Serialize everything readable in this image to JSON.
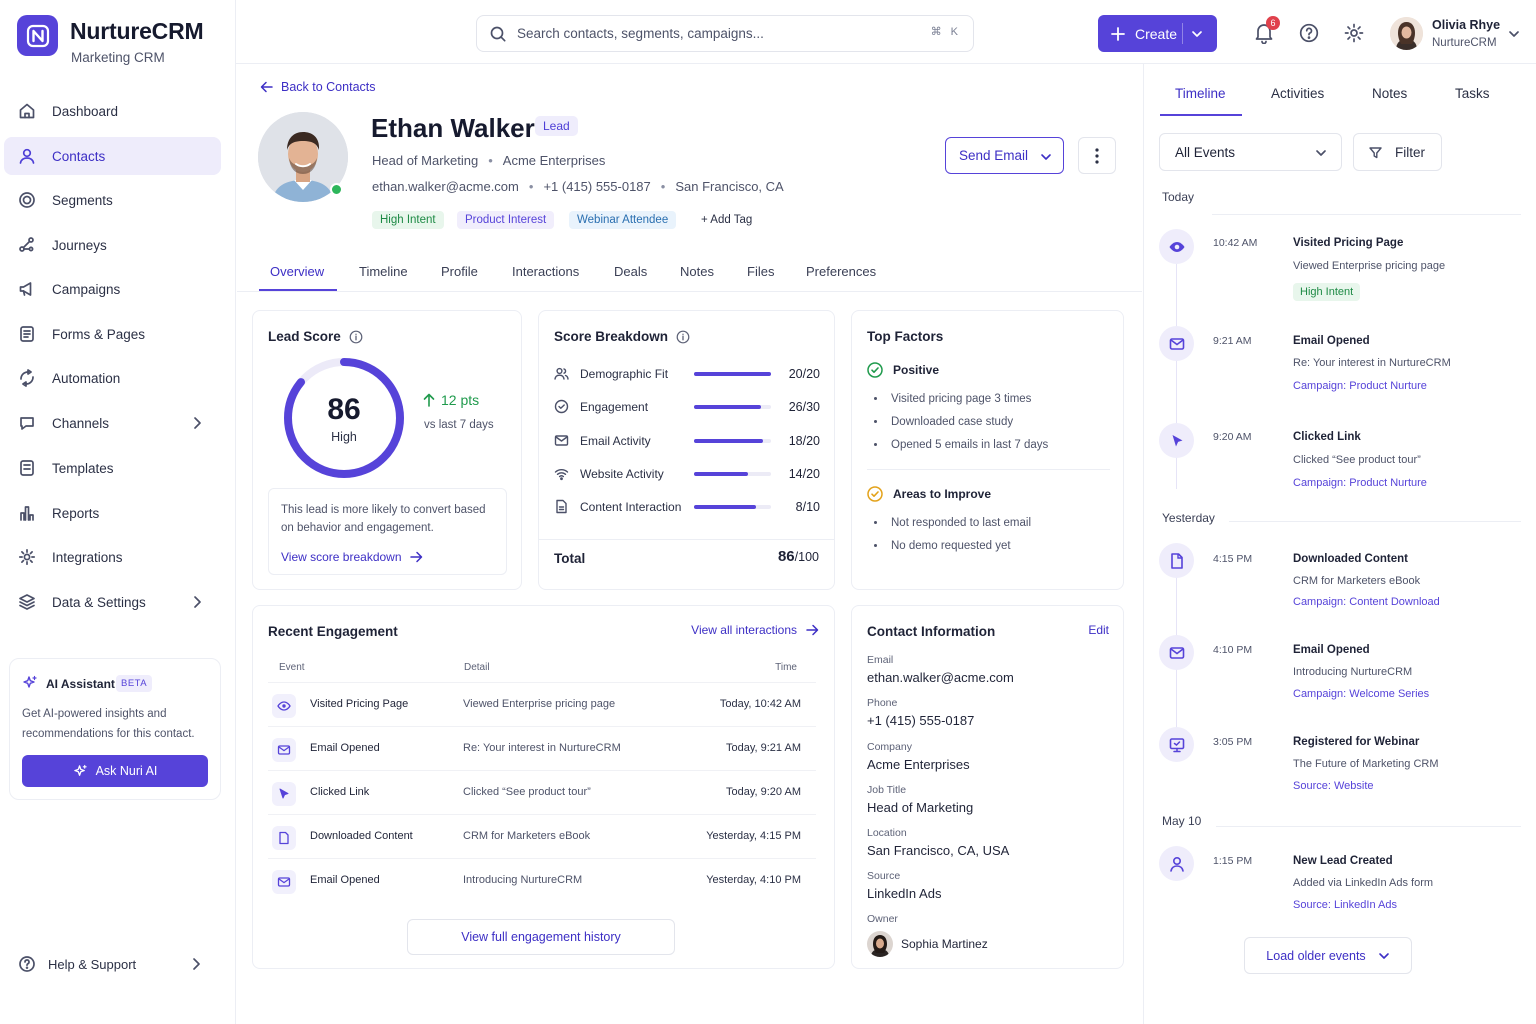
{
  "brand": {
    "name": "NurtureCRM",
    "subtitle": "Marketing CRM",
    "color": "#5643d9"
  },
  "sidebar": {
    "items": [
      {
        "label": "Dashboard",
        "icon": "home-icon"
      },
      {
        "label": "Contacts",
        "icon": "user-icon",
        "active": true
      },
      {
        "label": "Segments",
        "icon": "target-icon"
      },
      {
        "label": "Journeys",
        "icon": "journey-icon"
      },
      {
        "label": "Campaigns",
        "icon": "megaphone-icon"
      },
      {
        "label": "Forms & Pages",
        "icon": "form-icon"
      },
      {
        "label": "Automation",
        "icon": "automation-icon"
      },
      {
        "label": "Channels",
        "icon": "chat-icon"
      },
      {
        "label": "Templates",
        "icon": "template-icon"
      },
      {
        "label": "Reports",
        "icon": "reports-icon"
      },
      {
        "label": "Integrations",
        "icon": "gear-icon"
      },
      {
        "label": "Data & Settings",
        "icon": "layers-icon"
      }
    ],
    "ai": {
      "title": "AI Assistant",
      "badge": "BETA",
      "desc": "Get AI-powered insights and recommendations for this contact.",
      "button": "Ask Nuri AI"
    },
    "help": "Help & Support"
  },
  "topbar": {
    "search_placeholder": "Search contacts, segments, campaigns...",
    "shortcut": "⌘ K",
    "create": "Create",
    "notifications": "6",
    "user": {
      "name": "Olivia Rhye",
      "org": "NurtureCRM"
    }
  },
  "contact": {
    "back": "Back to Contacts",
    "name": "Ethan Walker",
    "stage": "Lead",
    "title": "Head of Marketing",
    "company": "Acme Enterprises",
    "email": "ethan.walker@acme.com",
    "phone": "+1 (415) 555-0187",
    "city": "San Francisco, CA",
    "tags": [
      "High Intent",
      "Product Interest",
      "Webinar Attendee"
    ],
    "add_tag": "+ Add Tag",
    "send_email": "Send Email"
  },
  "tabs": [
    "Overview",
    "Timeline",
    "Profile",
    "Interactions",
    "Deals",
    "Notes",
    "Files",
    "Preferences"
  ],
  "lead_score": {
    "title": "Lead Score",
    "score": "86",
    "max": 100,
    "level": "High",
    "change": "12 pts",
    "change_sub": "vs last 7 days",
    "note": "This lead is more likely to convert based on behavior and engagement.",
    "link": "View score breakdown"
  },
  "breakdown": {
    "title": "Score Breakdown",
    "rows": [
      {
        "name": "Demographic Fit",
        "value": "20/20",
        "score": 20,
        "max": 20,
        "icon": "users-icon"
      },
      {
        "name": "Engagement",
        "value": "26/30",
        "score": 26,
        "max": 30,
        "icon": "target-icon"
      },
      {
        "name": "Email Activity",
        "value": "18/20",
        "score": 18,
        "max": 20,
        "icon": "mail-icon"
      },
      {
        "name": "Website Activity",
        "value": "14/20",
        "score": 14,
        "max": 20,
        "icon": "wifi-icon"
      },
      {
        "name": "Content Interaction",
        "value": "8/10",
        "score": 8,
        "max": 10,
        "icon": "document-icon"
      }
    ],
    "total_label": "Total",
    "total": "86",
    "total_max": "/100"
  },
  "factors": {
    "title": "Top Factors",
    "positive_label": "Positive",
    "positive": [
      "Visited pricing page 3 times",
      "Downloaded case study",
      "Opened 5 emails in last 7 days"
    ],
    "improve_label": "Areas to Improve",
    "improve": [
      "Not responded to last email",
      "No demo requested yet"
    ]
  },
  "engagement": {
    "title": "Recent Engagement",
    "view_all": "View all interactions",
    "headers": [
      "Event",
      "Detail",
      "Time"
    ],
    "rows": [
      {
        "event": "Visited Pricing Page",
        "detail": "Viewed Enterprise pricing page",
        "time": "Today, 10:42 AM",
        "icon": "eye-icon"
      },
      {
        "event": "Email Opened",
        "detail": "Re: Your interest in NurtureCRM",
        "time": "Today, 9:21 AM",
        "icon": "mail-icon"
      },
      {
        "event": "Clicked Link",
        "detail": "Clicked “See product tour”",
        "time": "Today, 9:20 AM",
        "icon": "cursor-icon"
      },
      {
        "event": "Downloaded Content",
        "detail": "CRM for Marketers eBook",
        "time": "Yesterday, 4:15 PM",
        "icon": "document-icon"
      },
      {
        "event": "Email Opened",
        "detail": "Introducing NurtureCRM",
        "time": "Yesterday, 4:10 PM",
        "icon": "mail-icon"
      }
    ],
    "full_history": "View full engagement history"
  },
  "contact_info": {
    "title": "Contact Information",
    "edit": "Edit",
    "fields": [
      {
        "label": "Email",
        "value": "ethan.walker@acme.com"
      },
      {
        "label": "Phone",
        "value": "+1 (415) 555-0187"
      },
      {
        "label": "Company",
        "value": "Acme Enterprises"
      },
      {
        "label": "Job Title",
        "value": "Head of Marketing"
      },
      {
        "label": "Location",
        "value": "San Francisco, CA, USA"
      },
      {
        "label": "Source",
        "value": "LinkedIn Ads"
      }
    ],
    "owner_label": "Owner",
    "owner": "Sophia Martinez"
  },
  "timeline": {
    "tabs": [
      "Timeline",
      "Activities",
      "Notes",
      "Tasks"
    ],
    "filter_select": "All Events",
    "filter": "Filter",
    "groups": [
      {
        "day": "Today",
        "events": [
          {
            "time": "10:42 AM",
            "title": "Visited Pricing Page",
            "desc": "Viewed Enterprise pricing page",
            "tag": "High Intent",
            "icon": "eye-icon"
          },
          {
            "time": "9:21 AM",
            "title": "Email Opened",
            "desc": "Re: Your interest in NurtureCRM",
            "camp_label": "Campaign:",
            "camp": "Product Nurture",
            "icon": "mail-icon"
          },
          {
            "time": "9:20 AM",
            "title": "Clicked Link",
            "desc": "Clicked “See product tour”",
            "camp_label": "Campaign:",
            "camp": "Product Nurture",
            "icon": "cursor-icon"
          }
        ]
      },
      {
        "day": "Yesterday",
        "events": [
          {
            "time": "4:15 PM",
            "title": "Downloaded Content",
            "desc": "CRM for Marketers eBook",
            "camp_label": "Campaign:",
            "camp": "Content Download",
            "icon": "document-icon"
          },
          {
            "time": "4:10 PM",
            "title": "Email Opened",
            "desc": "Introducing NurtureCRM",
            "camp_label": "Campaign:",
            "camp": "Welcome Series",
            "icon": "mail-icon"
          },
          {
            "time": "3:05 PM",
            "title": "Registered for Webinar",
            "desc": "The Future of Marketing CRM",
            "camp_label": "Source:",
            "camp": "Website",
            "icon": "webinar-icon"
          }
        ]
      },
      {
        "day": "May 10",
        "events": [
          {
            "time": "1:15 PM",
            "title": "New Lead Created",
            "desc": "Added via LinkedIn Ads form",
            "camp_label": "Source:",
            "camp": "LinkedIn Ads",
            "icon": "user-icon"
          }
        ]
      }
    ],
    "load_older": "Load older events"
  }
}
